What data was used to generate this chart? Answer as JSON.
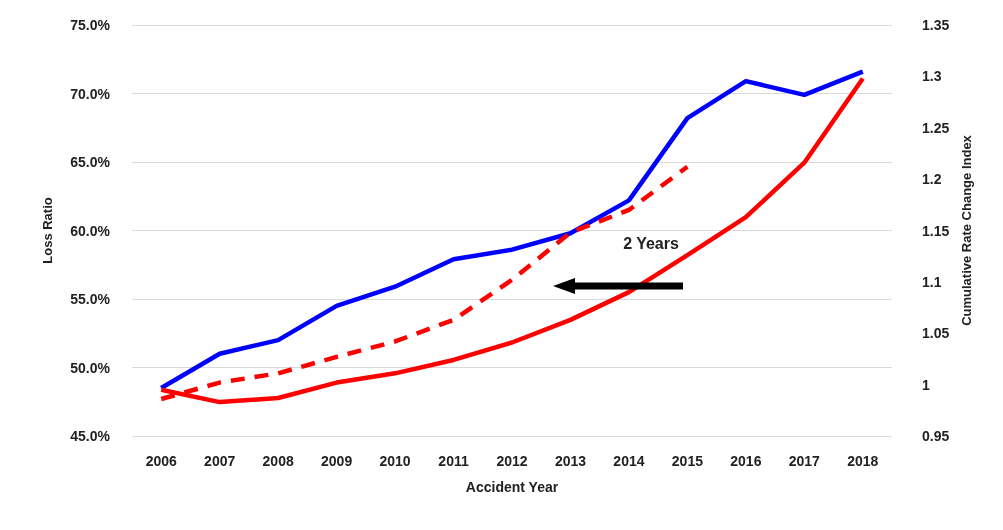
{
  "chart_data": {
    "type": "line",
    "xlabel": "Accident Year",
    "ylabel": "Loss Ratio",
    "y2label": "Cumulative Rate Change Index",
    "categories": [
      "2006",
      "2007",
      "2008",
      "2009",
      "2010",
      "2011",
      "2012",
      "2013",
      "2014",
      "2015",
      "2016",
      "2017",
      "2018"
    ],
    "series": [
      {
        "color": "#0000ff",
        "values": [
          48.5,
          51.0,
          52.0,
          54.5,
          55.9,
          57.9,
          58.6,
          59.8,
          62.2,
          68.2,
          70.9,
          69.9,
          71.6
        ]
      },
      {
        "color": "#ff0000",
        "axis": "y2",
        "values": [
          0.995,
          0.983,
          0.987,
          1.002,
          1.011,
          1.024,
          1.041,
          1.063,
          1.09,
          1.126,
          1.163,
          1.216,
          1.298
        ]
      },
      {
        "color": "#ff0000",
        "axis": "y2",
        "line_style": "dashed",
        "values": [
          0.986,
          1.002,
          1.011,
          1.027,
          1.042,
          1.063,
          1.102,
          1.148,
          1.17,
          1.212,
          null,
          null,
          null
        ]
      }
    ],
    "ylim": [
      45,
      75
    ],
    "yticks": [
      {
        "value": 45,
        "label": "45.0%"
      },
      {
        "value": 50,
        "label": "50.0%"
      },
      {
        "value": 55,
        "label": "55.0%"
      },
      {
        "value": 60,
        "label": "60.0%"
      },
      {
        "value": 65,
        "label": "65.0%"
      },
      {
        "value": 70,
        "label": "70.0%"
      },
      {
        "value": 75,
        "label": "75.0%"
      }
    ],
    "y2lim": [
      0.95,
      1.35
    ],
    "y2ticks": [
      0.95,
      1,
      1.05,
      1.1,
      1.15,
      1.2,
      1.25,
      1.3,
      1.35
    ],
    "annotations": [
      "2 Years"
    ],
    "grid": "y",
    "marker": "none",
    "line_style": "solid"
  }
}
